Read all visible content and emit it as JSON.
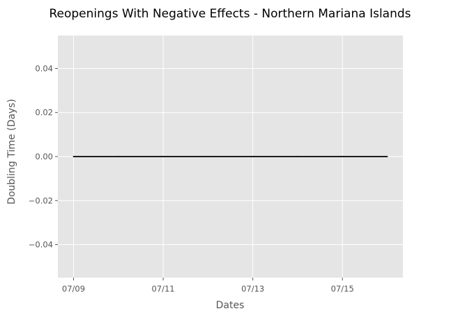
{
  "chart_data": {
    "type": "line",
    "title": "Reopenings With Negative Effects - Northern Mariana Islands",
    "xlabel": "Dates",
    "ylabel": "Doubling Time (Days)",
    "x_ticks": [
      "07/09",
      "07/11",
      "07/13",
      "07/15"
    ],
    "y_ticks": [
      "0.04",
      "0.02",
      "0.00",
      "−0.02",
      "−0.04"
    ],
    "ylim": [
      -0.055,
      0.055
    ],
    "xlim": [
      "2020-07-08",
      "2020-07-16"
    ],
    "grid": true,
    "series": [
      {
        "color": "#000000",
        "x": [
          "2020-07-09",
          "2020-07-10",
          "2020-07-11",
          "2020-07-12",
          "2020-07-13",
          "2020-07-14",
          "2020-07-15",
          "2020-07-16"
        ],
        "y": [
          0,
          0,
          0,
          0,
          0,
          0,
          0,
          0
        ]
      }
    ],
    "colors": {
      "plot_background": "#e5e5e5",
      "grid": "#ffffff",
      "tick_text": "#555555"
    }
  }
}
